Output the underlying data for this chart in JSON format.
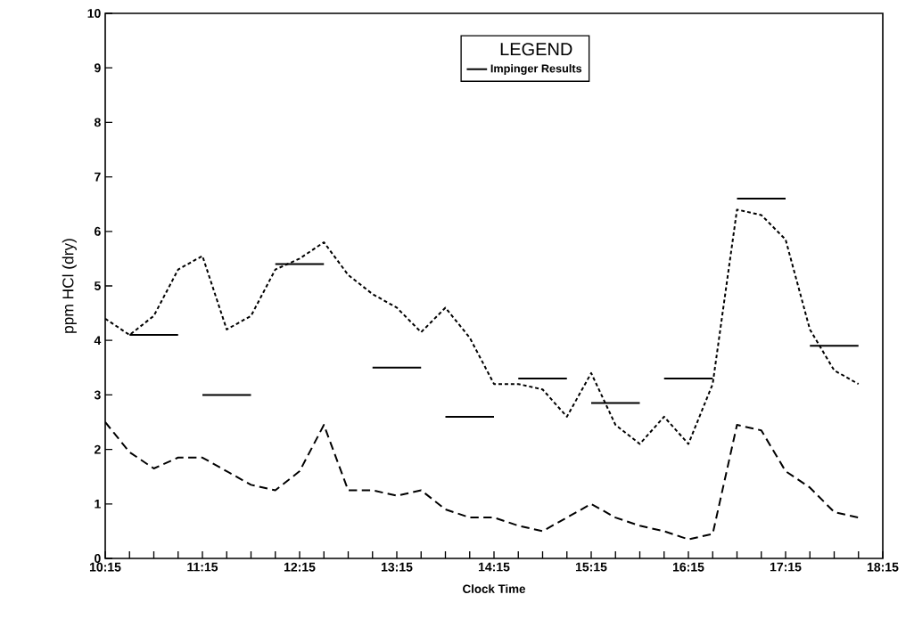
{
  "chart_data": {
    "type": "line",
    "xlabel": "Clock Time",
    "ylabel": "ppm HCl (dry)",
    "legend_title": "LEGEND",
    "xlim": [
      10.25,
      18.25
    ],
    "ylim": [
      0,
      10
    ],
    "xticks": [
      {
        "value": 10.25,
        "label": "10:15"
      },
      {
        "value": 10.5,
        "label": null
      },
      {
        "value": 10.75,
        "label": null
      },
      {
        "value": 11.0,
        "label": null
      },
      {
        "value": 11.25,
        "label": "11:15"
      },
      {
        "value": 11.5,
        "label": null
      },
      {
        "value": 11.75,
        "label": null
      },
      {
        "value": 12.0,
        "label": null
      },
      {
        "value": 12.25,
        "label": "12:15"
      },
      {
        "value": 12.5,
        "label": null
      },
      {
        "value": 12.75,
        "label": null
      },
      {
        "value": 13.0,
        "label": null
      },
      {
        "value": 13.25,
        "label": "13:15"
      },
      {
        "value": 13.5,
        "label": null
      },
      {
        "value": 13.75,
        "label": null
      },
      {
        "value": 14.0,
        "label": null
      },
      {
        "value": 14.25,
        "label": "14:15"
      },
      {
        "value": 14.5,
        "label": null
      },
      {
        "value": 14.75,
        "label": null
      },
      {
        "value": 15.0,
        "label": null
      },
      {
        "value": 15.25,
        "label": "15:15"
      },
      {
        "value": 15.5,
        "label": null
      },
      {
        "value": 15.75,
        "label": null
      },
      {
        "value": 16.0,
        "label": null
      },
      {
        "value": 16.25,
        "label": "16:15"
      },
      {
        "value": 16.5,
        "label": null
      },
      {
        "value": 16.75,
        "label": null
      },
      {
        "value": 17.0,
        "label": null
      },
      {
        "value": 17.25,
        "label": "17:15"
      },
      {
        "value": 17.5,
        "label": null
      },
      {
        "value": 17.75,
        "label": null
      },
      {
        "value": 18.0,
        "label": null
      },
      {
        "value": 18.25,
        "label": "18:15"
      }
    ],
    "yticks": [
      0,
      1,
      2,
      3,
      4,
      5,
      6,
      7,
      8,
      9,
      10
    ],
    "grid": false,
    "legend": "top",
    "marker": "none",
    "series": [
      {
        "color": "#000000",
        "line_style": "dotted",
        "x": [
          10.25,
          10.5,
          10.75,
          11.0,
          11.25,
          11.5,
          11.75,
          12.0,
          12.25,
          12.5,
          12.75,
          13.0,
          13.25,
          13.5,
          13.75,
          14.0,
          14.25,
          14.5,
          14.75,
          15.0,
          15.25,
          15.5,
          15.75,
          16.0,
          16.25,
          16.5,
          16.75,
          17.0,
          17.25,
          17.5,
          17.75,
          18.0
        ],
        "values": [
          4.4,
          4.1,
          4.45,
          5.3,
          5.55,
          4.2,
          4.45,
          5.3,
          5.5,
          5.8,
          5.2,
          4.85,
          4.6,
          4.15,
          4.6,
          4.05,
          3.2,
          3.2,
          3.1,
          2.6,
          3.4,
          2.45,
          2.1,
          2.6,
          2.1,
          3.2,
          6.4,
          6.3,
          5.85,
          4.2,
          3.45,
          3.2
        ]
      },
      {
        "color": "#000000",
        "line_style": "dashed",
        "x": [
          10.25,
          10.5,
          10.75,
          11.0,
          11.25,
          11.5,
          11.75,
          12.0,
          12.25,
          12.5,
          12.75,
          13.0,
          13.25,
          13.5,
          13.75,
          14.0,
          14.25,
          14.5,
          14.75,
          15.0,
          15.25,
          15.5,
          15.75,
          16.0,
          16.25,
          16.5,
          16.75,
          17.0,
          17.25,
          17.5,
          17.75,
          18.0
        ],
        "values": [
          2.5,
          1.95,
          1.65,
          1.85,
          1.85,
          1.6,
          1.35,
          1.25,
          1.6,
          2.45,
          1.25,
          1.25,
          1.15,
          1.25,
          0.9,
          0.75,
          0.75,
          0.6,
          0.5,
          0.75,
          1.0,
          0.75,
          0.6,
          0.5,
          0.35,
          0.45,
          2.45,
          2.35,
          1.6,
          1.3,
          0.85,
          0.75
        ]
      },
      {
        "name": "Impinger Results",
        "color": "#000000",
        "line_style": "solid",
        "x": [
          10.5,
          11.0,
          null,
          11.25,
          11.75,
          null,
          12.0,
          12.5,
          null,
          13.0,
          13.5,
          null,
          13.75,
          14.25,
          null,
          14.5,
          15.0,
          null,
          15.25,
          15.75,
          null,
          16.0,
          16.5,
          null,
          16.75,
          17.25,
          null,
          17.5,
          18.0
        ],
        "values": [
          4.1,
          4.1,
          null,
          3.0,
          3.0,
          null,
          5.4,
          5.4,
          null,
          3.5,
          3.5,
          null,
          2.6,
          2.6,
          null,
          3.3,
          3.3,
          null,
          2.85,
          2.85,
          null,
          3.3,
          3.3,
          null,
          6.6,
          6.6,
          null,
          3.9,
          3.9
        ]
      }
    ]
  }
}
